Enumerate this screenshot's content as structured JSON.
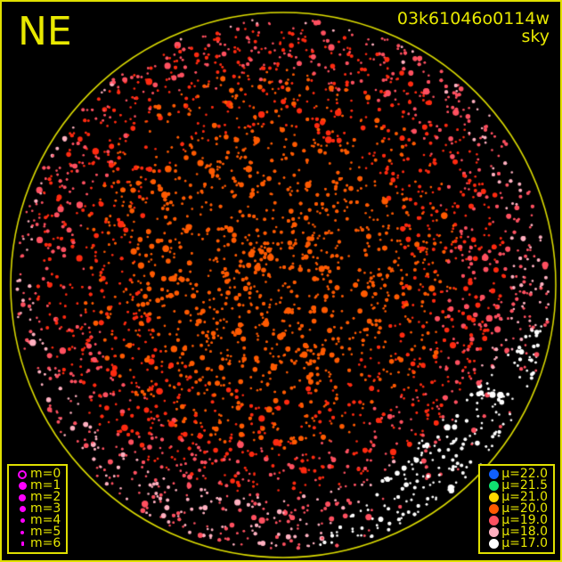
{
  "header": {
    "direction": "NE",
    "frame_id": "03k61046o0114w",
    "image_type": "sky"
  },
  "colors": {
    "frame": "#e0e000",
    "horizon": "#e0e000",
    "background": "#000000"
  },
  "magnitude_legend": [
    {
      "label": "m=0",
      "symbol": "ring"
    },
    {
      "label": "m=1",
      "symbol": "dot"
    },
    {
      "label": "m=2",
      "symbol": "dot"
    },
    {
      "label": "m=3",
      "symbol": "dot"
    },
    {
      "label": "m=4",
      "symbol": "dot"
    },
    {
      "label": "m=5",
      "symbol": "dot"
    },
    {
      "label": "m=6",
      "symbol": "dot"
    }
  ],
  "magnitude_color": "#ff00ff",
  "sky_brightness_legend": [
    {
      "label": "μ=22.0",
      "color": "#1060ff"
    },
    {
      "label": "μ=21.5",
      "color": "#10e070"
    },
    {
      "label": "μ=21.0",
      "color": "#ffd800"
    },
    {
      "label": "μ=20.0",
      "color": "#ff5a00"
    },
    {
      "label": "μ=19.0",
      "color": "#ff5060"
    },
    {
      "label": "μ=18.0",
      "color": "#ffb0c0"
    },
    {
      "label": "μ=17.0",
      "color": "#ffffff"
    }
  ]
}
